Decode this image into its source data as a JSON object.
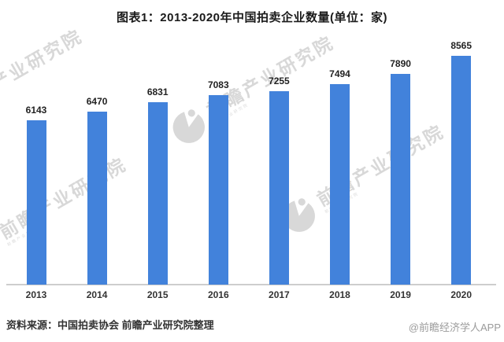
{
  "title": "图表1：2013-2020年中国拍卖企业数量(单位：家)",
  "chart_data": {
    "type": "bar",
    "title": "图表1：2013-2020年中国拍卖企业数量(单位：家)",
    "categories": [
      "2013",
      "2014",
      "2015",
      "2016",
      "2017",
      "2018",
      "2019",
      "2020"
    ],
    "values": [
      6143,
      6470,
      6831,
      7083,
      7255,
      7494,
      7890,
      8565
    ],
    "xlabel": "",
    "ylabel": "",
    "unit": "家",
    "ylim": [
      0,
      8565
    ],
    "grid": false,
    "legend": false,
    "data_labels": true,
    "bar_color": "#4282DB"
  },
  "footer": {
    "source": "资料来源：中国拍卖协会 前瞻产业研究院整理",
    "credit": "@前瞻经济学人APP"
  },
  "watermark": {
    "text": "前瞻产业研究院",
    "color": "#d8d8d8"
  }
}
